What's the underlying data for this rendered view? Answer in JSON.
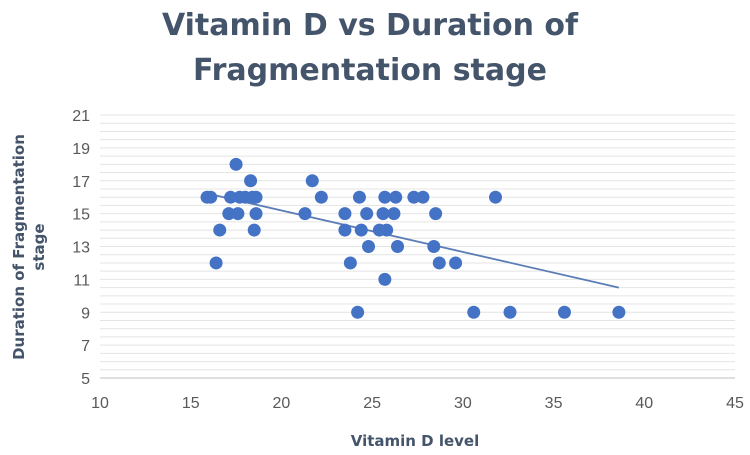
{
  "chart_data": {
    "type": "scatter",
    "title_lines": [
      "Vitamin D vs Duration of",
      "Fragmentation stage"
    ],
    "xlabel": "Vitamin D level",
    "ylabel_lines": [
      "Duration of Fragmentation",
      "stage"
    ],
    "xlim": [
      10,
      45
    ],
    "ylim": [
      5,
      21
    ],
    "x_ticks": [
      10,
      15,
      20,
      25,
      30,
      35,
      40,
      45
    ],
    "y_ticks": [
      5,
      7,
      9,
      11,
      13,
      15,
      17,
      19,
      21
    ],
    "minor_grid_step": 0.5,
    "legend": "none",
    "marker_color": "#4472c4",
    "trendline_color": "#5b7db5",
    "trendline": {
      "type": "linear",
      "x": [
        16,
        38.6
      ],
      "y": [
        16.2,
        10.5
      ]
    },
    "series": [
      {
        "name": "Duration of Fragmentation stage",
        "points": [
          [
            15.9,
            16
          ],
          [
            16.1,
            16
          ],
          [
            16.4,
            12
          ],
          [
            16.6,
            14
          ],
          [
            17.1,
            15
          ],
          [
            17.2,
            16
          ],
          [
            17.5,
            18
          ],
          [
            17.6,
            15
          ],
          [
            17.7,
            16
          ],
          [
            18.0,
            16
          ],
          [
            18.3,
            17
          ],
          [
            18.4,
            16
          ],
          [
            18.5,
            14
          ],
          [
            18.6,
            16
          ],
          [
            18.6,
            15
          ],
          [
            21.3,
            15
          ],
          [
            21.7,
            17
          ],
          [
            22.2,
            16
          ],
          [
            23.5,
            15
          ],
          [
            23.5,
            14
          ],
          [
            23.8,
            12
          ],
          [
            24.2,
            9
          ],
          [
            24.3,
            16
          ],
          [
            24.4,
            14
          ],
          [
            24.7,
            15
          ],
          [
            24.8,
            13
          ],
          [
            25.4,
            14
          ],
          [
            25.6,
            15
          ],
          [
            25.7,
            16
          ],
          [
            25.7,
            11
          ],
          [
            25.8,
            14
          ],
          [
            26.2,
            15
          ],
          [
            26.3,
            16
          ],
          [
            26.4,
            13
          ],
          [
            27.3,
            16
          ],
          [
            27.8,
            16
          ],
          [
            28.4,
            13
          ],
          [
            28.5,
            15
          ],
          [
            28.7,
            12
          ],
          [
            29.6,
            12
          ],
          [
            30.6,
            9
          ],
          [
            31.8,
            16
          ],
          [
            32.6,
            9
          ],
          [
            35.6,
            9
          ],
          [
            38.6,
            9
          ]
        ]
      }
    ]
  }
}
